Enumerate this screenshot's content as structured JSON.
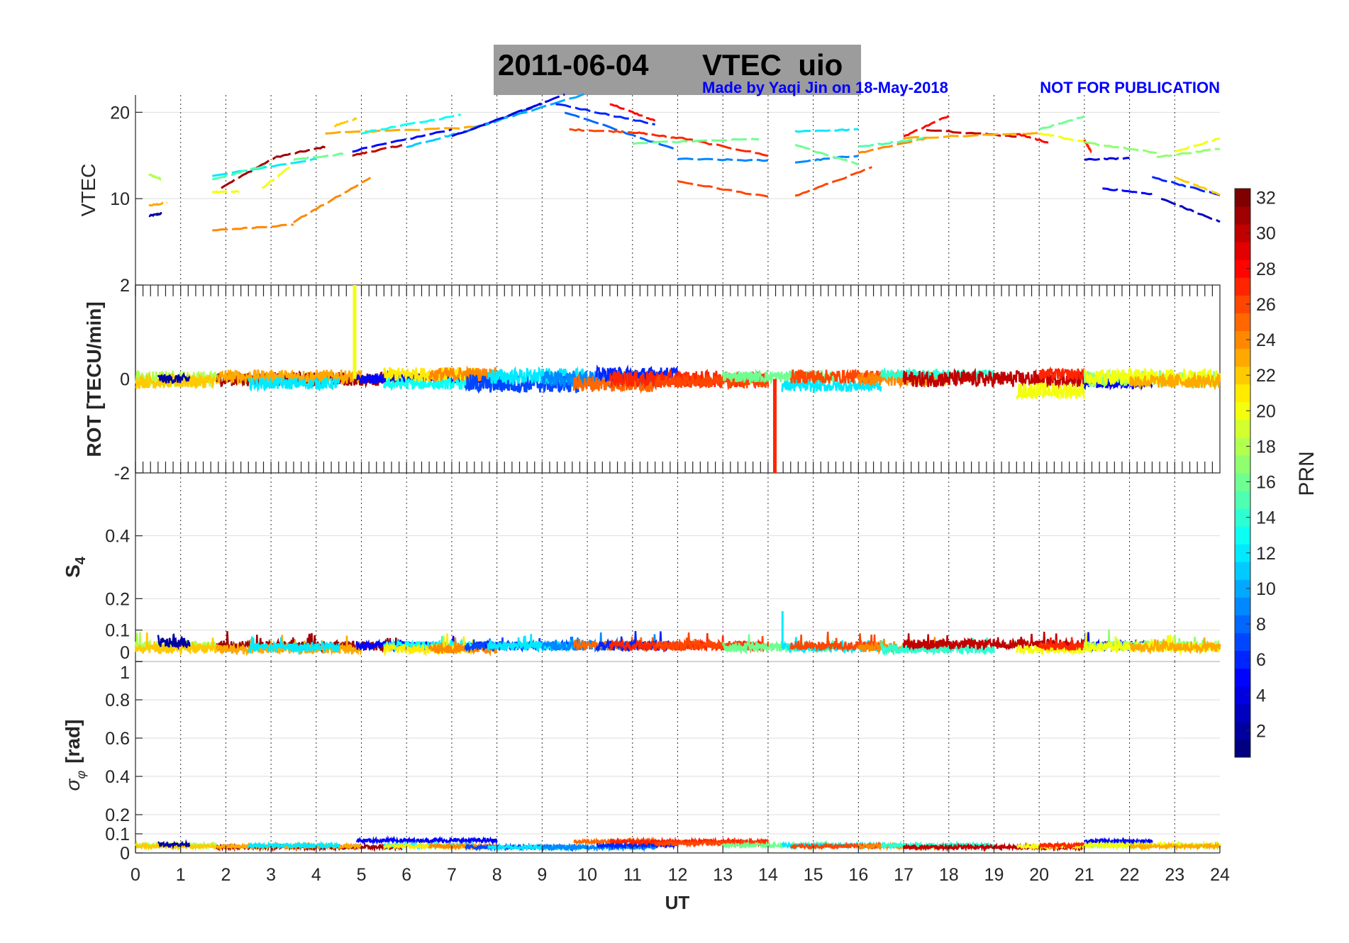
{
  "chart_data": {
    "type": "line",
    "title": {
      "date": "2011-06-04",
      "name": "VTEC  uio"
    },
    "credit": "Made by Yaqi Jin on 18-May-2018",
    "notice": "NOT FOR PUBLICATION",
    "xlabel": "UT",
    "xlim": [
      0,
      24
    ],
    "xticks": [
      "0",
      "1",
      "2",
      "3",
      "4",
      "5",
      "6",
      "7",
      "8",
      "9",
      "10",
      "11",
      "12",
      "13",
      "14",
      "15",
      "16",
      "17",
      "18",
      "19",
      "20",
      "21",
      "22",
      "23",
      "24"
    ],
    "grid": true,
    "colorbar": {
      "label": "PRN",
      "range": [
        1,
        32
      ],
      "ticks": [
        "2",
        "4",
        "6",
        "8",
        "10",
        "12",
        "14",
        "16",
        "18",
        "20",
        "22",
        "24",
        "26",
        "28",
        "30",
        "32"
      ],
      "colormap": "jet",
      "placement": "right"
    },
    "panels": {
      "vtec": {
        "ylabel": "VTEC",
        "ylim": [
          0,
          22
        ],
        "yticks": [
          {
            "v": 10,
            "label": "10"
          },
          {
            "v": 20,
            "label": "20"
          }
        ]
      },
      "rot": {
        "ylabel": "ROT [TECU/min]",
        "ylim": [
          -2,
          2
        ],
        "yticks": [
          {
            "v": -2,
            "label": "-2"
          },
          {
            "v": 0,
            "label": "0"
          },
          {
            "v": 2,
            "label": "2"
          }
        ]
      },
      "s4": {
        "ylabel": "S",
        "ylabel_sub": "4",
        "ylim": [
          0,
          0.6
        ],
        "yticks": [
          {
            "v": 0,
            "label": "0"
          },
          {
            "v": 0.1,
            "label": "0.1"
          },
          {
            "v": 0.2,
            "label": "0.2"
          },
          {
            "v": 0.4,
            "label": "0.4"
          }
        ]
      },
      "sigma": {
        "ylabel": "σ",
        "ylabel_sub": "φ",
        "ylabel_unit": "[rad]",
        "ylim": [
          0,
          1
        ],
        "yticks": [
          {
            "v": 0,
            "label": "0"
          },
          {
            "v": 0.1,
            "label": "0.1"
          },
          {
            "v": 0.2,
            "label": "0.2"
          },
          {
            "v": 0.4,
            "label": "0.4"
          },
          {
            "v": 0.6,
            "label": "0.6"
          },
          {
            "v": 0.8,
            "label": "0.8"
          },
          {
            "v": 1,
            "label": "1"
          }
        ]
      }
    },
    "vtec_series": [
      {
        "prn": 2,
        "x": [
          0.3,
          0.6
        ],
        "y": [
          8.0,
          8.3
        ]
      },
      {
        "prn": 23,
        "x": [
          0.3,
          0.7
        ],
        "y": [
          9.2,
          9.5
        ]
      },
      {
        "prn": 18,
        "x": [
          0.3,
          0.6
        ],
        "y": [
          12.8,
          12.2
        ]
      },
      {
        "prn": 31,
        "x": [
          1.9,
          3.1
        ],
        "y": [
          11.3,
          14.8
        ]
      },
      {
        "prn": 31,
        "x": [
          3.1,
          4.2
        ],
        "y": [
          14.8,
          16.0
        ]
      },
      {
        "prn": 30,
        "x": [
          4.8,
          5.9
        ],
        "y": [
          15.0,
          16.2
        ]
      },
      {
        "prn": 12,
        "x": [
          1.7,
          4.0
        ],
        "y": [
          12.6,
          14.6
        ]
      },
      {
        "prn": 24,
        "x": [
          1.7,
          3.5
        ],
        "y": [
          6.3,
          7.0
        ]
      },
      {
        "prn": 24,
        "x": [
          3.5,
          5.2
        ],
        "y": [
          7.3,
          12.4
        ]
      },
      {
        "prn": 20,
        "x": [
          1.7,
          2.3
        ],
        "y": [
          10.8,
          10.8
        ]
      },
      {
        "prn": 20,
        "x": [
          2.8,
          3.5
        ],
        "y": [
          11.2,
          14.0
        ]
      },
      {
        "prn": 15,
        "x": [
          1.7,
          3.0
        ],
        "y": [
          12.2,
          14.0
        ]
      },
      {
        "prn": 16,
        "x": [
          3.5,
          4.6
        ],
        "y": [
          14.5,
          15.2
        ]
      },
      {
        "prn": 23,
        "x": [
          4.2,
          7.7
        ],
        "y": [
          17.6,
          18.3
        ]
      },
      {
        "prn": 22,
        "x": [
          4.4,
          4.9
        ],
        "y": [
          18.4,
          19.3
        ]
      },
      {
        "prn": 5,
        "x": [
          4.8,
          7.0
        ],
        "y": [
          15.5,
          18.0
        ]
      },
      {
        "prn": 13,
        "x": [
          5.0,
          7.2
        ],
        "y": [
          17.6,
          19.7
        ]
      },
      {
        "prn": 11,
        "x": [
          6.0,
          7.3
        ],
        "y": [
          16.0,
          17.8
        ]
      },
      {
        "prn": 7,
        "x": [
          7.3,
          9.0
        ],
        "y": [
          17.8,
          21.0
        ]
      },
      {
        "prn": 10,
        "x": [
          7.5,
          10.0
        ],
        "y": [
          18.2,
          22.2
        ]
      },
      {
        "prn": 4,
        "x": [
          7.0,
          9.5
        ],
        "y": [
          17.2,
          22.0
        ]
      },
      {
        "prn": 6,
        "x": [
          9.3,
          11.5
        ],
        "y": [
          21.0,
          18.6
        ]
      },
      {
        "prn": 8,
        "x": [
          9.5,
          12.0
        ],
        "y": [
          20.0,
          15.6
        ]
      },
      {
        "prn": 26,
        "x": [
          9.6,
          11.0
        ],
        "y": [
          18.0,
          17.7
        ]
      },
      {
        "prn": 27,
        "x": [
          11.0,
          12.0
        ],
        "y": [
          17.7,
          17.0
        ]
      },
      {
        "prn": 28,
        "x": [
          10.5,
          11.5
        ],
        "y": [
          21.0,
          19.0
        ]
      },
      {
        "prn": 27,
        "x": [
          12.0,
          14.0
        ],
        "y": [
          17.1,
          15.0
        ]
      },
      {
        "prn": 26,
        "x": [
          12.0,
          14.0
        ],
        "y": [
          12.0,
          10.2
        ]
      },
      {
        "prn": 16,
        "x": [
          11.0,
          13.8
        ],
        "y": [
          16.4,
          16.9
        ]
      },
      {
        "prn": 9,
        "x": [
          12.0,
          14.0
        ],
        "y": [
          14.6,
          14.4
        ]
      },
      {
        "prn": 12,
        "x": [
          14.6,
          16.0
        ],
        "y": [
          17.8,
          18.0
        ]
      },
      {
        "prn": 9,
        "x": [
          14.6,
          16.0
        ],
        "y": [
          14.2,
          15.0
        ]
      },
      {
        "prn": 26,
        "x": [
          14.6,
          16.3
        ],
        "y": [
          10.3,
          13.6
        ]
      },
      {
        "prn": 16,
        "x": [
          14.6,
          16.0
        ],
        "y": [
          16.2,
          14.0
        ]
      },
      {
        "prn": 24,
        "x": [
          16.0,
          17.5
        ],
        "y": [
          15.3,
          17.0
        ]
      },
      {
        "prn": 15,
        "x": [
          16.0,
          17.5
        ],
        "y": [
          16.0,
          17.0
        ]
      },
      {
        "prn": 28,
        "x": [
          17.0,
          18.0
        ],
        "y": [
          17.2,
          19.6
        ]
      },
      {
        "prn": 30,
        "x": [
          17.5,
          19.5
        ],
        "y": [
          18.0,
          17.2
        ]
      },
      {
        "prn": 23,
        "x": [
          17.0,
          20.0
        ],
        "y": [
          17.0,
          17.6
        ]
      },
      {
        "prn": 28,
        "x": [
          19.5,
          20.2
        ],
        "y": [
          17.5,
          16.5
        ]
      },
      {
        "prn": 16,
        "x": [
          20.0,
          21.0
        ],
        "y": [
          18.0,
          19.5
        ]
      },
      {
        "prn": 20,
        "x": [
          20.0,
          21.0
        ],
        "y": [
          17.6,
          16.6
        ]
      },
      {
        "prn": 27,
        "x": [
          21.0,
          21.2
        ],
        "y": [
          16.8,
          15.0
        ]
      },
      {
        "prn": 17,
        "x": [
          21.0,
          22.6
        ],
        "y": [
          16.5,
          15.3
        ]
      },
      {
        "prn": 4,
        "x": [
          21.0,
          22.0
        ],
        "y": [
          14.5,
          14.7
        ]
      },
      {
        "prn": 5,
        "x": [
          21.4,
          22.5
        ],
        "y": [
          11.2,
          10.5
        ]
      },
      {
        "prn": 6,
        "x": [
          22.5,
          24.0
        ],
        "y": [
          12.5,
          10.4
        ]
      },
      {
        "prn": 3,
        "x": [
          22.7,
          24.0
        ],
        "y": [
          10.0,
          7.3
        ]
      },
      {
        "prn": 17,
        "x": [
          22.6,
          24.0
        ],
        "y": [
          14.8,
          15.8
        ]
      },
      {
        "prn": 20,
        "x": [
          23.0,
          24.0
        ],
        "y": [
          15.4,
          17.0
        ]
      },
      {
        "prn": 22,
        "x": [
          23.0,
          24.0
        ],
        "y": [
          12.5,
          10.5
        ]
      }
    ],
    "arcs": [
      {
        "prn": 18,
        "x": [
          0,
          1.8
        ],
        "rot": 0.0,
        "rot_amp": 0.35,
        "s4": 0.05,
        "sig": 0.04
      },
      {
        "prn": 22,
        "x": [
          0,
          1.8
        ],
        "rot": -0.05,
        "rot_amp": 0.3,
        "s4": 0.04,
        "sig": 0.035
      },
      {
        "prn": 2,
        "x": [
          0.5,
          1.2
        ],
        "rot": 0.0,
        "rot_amp": 0.2,
        "s4": 0.06,
        "sig": 0.045
      },
      {
        "prn": 31,
        "x": [
          1.8,
          5.9
        ],
        "rot": 0.0,
        "rot_amp": 0.3,
        "s4": 0.05,
        "sig": 0.03
      },
      {
        "prn": 23,
        "x": [
          1.8,
          5.0
        ],
        "rot": 0.05,
        "rot_amp": 0.3,
        "s4": 0.04,
        "sig": 0.035
      },
      {
        "prn": 12,
        "x": [
          2.5,
          4.5
        ],
        "rot": -0.1,
        "rot_amp": 0.25,
        "s4": 0.045,
        "sig": 0.04
      },
      {
        "prn": 5,
        "x": [
          4.9,
          8.0
        ],
        "rot": 0.0,
        "rot_amp": 0.2,
        "s4": 0.05,
        "sig": 0.065
      },
      {
        "prn": 13,
        "x": [
          5.5,
          7.5
        ],
        "rot": -0.1,
        "rot_amp": 0.25,
        "s4": 0.05,
        "sig": 0.04
      },
      {
        "prn": 21,
        "x": [
          5.5,
          7.5
        ],
        "rot": 0.1,
        "rot_amp": 0.3,
        "s4": 0.04,
        "sig": 0.035
      },
      {
        "prn": 24,
        "x": [
          6.5,
          8.0
        ],
        "rot": 0.1,
        "rot_amp": 0.3,
        "s4": 0.04,
        "sig": 0.035
      },
      {
        "prn": 7,
        "x": [
          7.3,
          9.8
        ],
        "rot": -0.1,
        "rot_amp": 0.4,
        "s4": 0.05,
        "sig": 0.03
      },
      {
        "prn": 12,
        "x": [
          7.8,
          10.0
        ],
        "rot": 0.05,
        "rot_amp": 0.35,
        "s4": 0.05,
        "sig": 0.03
      },
      {
        "prn": 9,
        "x": [
          9.0,
          11.5
        ],
        "rot": 0.0,
        "rot_amp": 0.35,
        "s4": 0.05,
        "sig": 0.03
      },
      {
        "prn": 25,
        "x": [
          9.7,
          11.5
        ],
        "rot": -0.1,
        "rot_amp": 0.35,
        "s4": 0.05,
        "sig": 0.06
      },
      {
        "prn": 6,
        "x": [
          10.2,
          12.0
        ],
        "rot": 0.1,
        "rot_amp": 0.3,
        "s4": 0.05,
        "sig": 0.04
      },
      {
        "prn": 27,
        "x": [
          10.5,
          14.0
        ],
        "rot": 0.0,
        "rot_amp": 0.35,
        "s4": 0.05,
        "sig": 0.06
      },
      {
        "prn": 26,
        "x": [
          11.5,
          14.0
        ],
        "rot": -0.05,
        "rot_amp": 0.3,
        "s4": 0.05,
        "sig": 0.05
      },
      {
        "prn": 16,
        "x": [
          13.0,
          15.5
        ],
        "rot": 0.05,
        "rot_amp": 0.25,
        "s4": 0.045,
        "sig": 0.04
      },
      {
        "prn": 12,
        "x": [
          14.3,
          16.5
        ],
        "rot": -0.15,
        "rot_amp": 0.25,
        "s4": 0.045,
        "sig": 0.04
      },
      {
        "prn": 26,
        "x": [
          14.5,
          16.5
        ],
        "rot": 0.05,
        "rot_amp": 0.3,
        "s4": 0.05,
        "sig": 0.035
      },
      {
        "prn": 24,
        "x": [
          16.0,
          18.0
        ],
        "rot": 0.0,
        "rot_amp": 0.3,
        "s4": 0.045,
        "sig": 0.035
      },
      {
        "prn": 14,
        "x": [
          16.5,
          19.0
        ],
        "rot": 0.1,
        "rot_amp": 0.2,
        "s4": 0.04,
        "sig": 0.04
      },
      {
        "prn": 30,
        "x": [
          17.0,
          21.0
        ],
        "rot": 0.0,
        "rot_amp": 0.35,
        "s4": 0.055,
        "sig": 0.03
      },
      {
        "prn": 20,
        "x": [
          19.5,
          21.0
        ],
        "rot": -0.25,
        "rot_amp": 0.35,
        "s4": 0.04,
        "sig": 0.035
      },
      {
        "prn": 27,
        "x": [
          20.0,
          21.0
        ],
        "rot": 0.1,
        "rot_amp": 0.25,
        "s4": 0.05,
        "sig": 0.04
      },
      {
        "prn": 5,
        "x": [
          21.0,
          22.5
        ],
        "rot": -0.1,
        "rot_amp": 0.2,
        "s4": 0.05,
        "sig": 0.06
      },
      {
        "prn": 17,
        "x": [
          21.0,
          24.0
        ],
        "rot": 0.0,
        "rot_amp": 0.35,
        "s4": 0.05,
        "sig": 0.04
      },
      {
        "prn": 20,
        "x": [
          21.0,
          24.0
        ],
        "rot": 0.05,
        "rot_amp": 0.35,
        "s4": 0.045,
        "sig": 0.04
      },
      {
        "prn": 23,
        "x": [
          22.0,
          24.0
        ],
        "rot": -0.05,
        "rot_amp": 0.3,
        "s4": 0.045,
        "sig": 0.035
      }
    ],
    "spikes": [
      {
        "panel": "rot",
        "prn": 20,
        "x": 4.85,
        "y": 2.0
      },
      {
        "panel": "rot",
        "prn": 27,
        "x": 14.15,
        "y": -2.0
      },
      {
        "panel": "s4",
        "prn": 12,
        "x": 14.32,
        "y": 0.16
      }
    ]
  }
}
